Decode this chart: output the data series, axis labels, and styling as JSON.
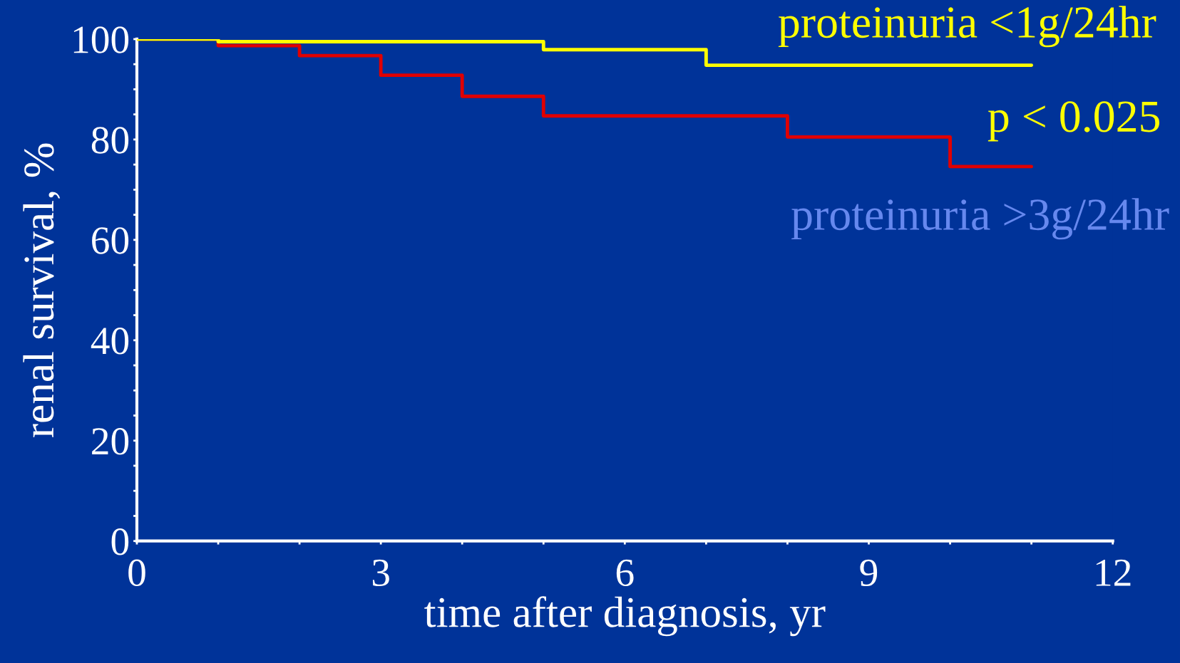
{
  "chart_data": {
    "type": "step",
    "xlabel": "time after diagnosis, yr",
    "ylabel": "renal survival, %",
    "xlim": [
      0,
      12
    ],
    "ylim": [
      0,
      100
    ],
    "xticks": [
      0,
      {
        "value": 1,
        "label": null
      },
      {
        "value": 2,
        "label": null
      },
      3,
      {
        "value": 4,
        "label": null
      },
      {
        "value": 5,
        "label": null
      },
      6,
      {
        "value": 7,
        "label": null
      },
      {
        "value": 8,
        "label": null
      },
      9,
      {
        "value": 10,
        "label": null
      },
      {
        "value": 11,
        "label": null
      },
      12
    ],
    "yticks": [
      0,
      {
        "value": 5,
        "label": null
      },
      {
        "value": 10,
        "label": null
      },
      {
        "value": 15,
        "label": null
      },
      20,
      {
        "value": 25,
        "label": null
      },
      {
        "value": 30,
        "label": null
      },
      {
        "value": 35,
        "label": null
      },
      40,
      {
        "value": 45,
        "label": null
      },
      {
        "value": 50,
        "label": null
      },
      {
        "value": 55,
        "label": null
      },
      60,
      {
        "value": 65,
        "label": null
      },
      {
        "value": 70,
        "label": null
      },
      {
        "value": 75,
        "label": null
      },
      80,
      {
        "value": 85,
        "label": null
      },
      {
        "value": 90,
        "label": null
      },
      {
        "value": 95,
        "label": null
      },
      100
    ],
    "series": [
      {
        "color": "#e00000",
        "x": [
          0,
          1,
          2,
          3,
          4,
          5,
          8,
          10,
          11
        ],
        "values": [
          100,
          98.7,
          96.7,
          92.8,
          88.6,
          84.7,
          80.5,
          74.6,
          74.6
        ]
      },
      {
        "color": "#ffff00",
        "x": [
          0,
          1,
          5,
          7,
          11
        ],
        "values": [
          100,
          99.5,
          97.9,
          94.8,
          94.8
        ]
      }
    ],
    "annotations": [
      "proteinuria <1g/24hr",
      "p < 0.025",
      "proteinuria >3g/24hr"
    ],
    "grid": false,
    "legend": false,
    "line_style": "solid",
    "marker": "none"
  }
}
